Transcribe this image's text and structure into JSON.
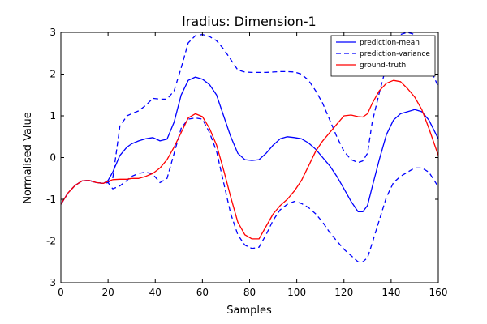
{
  "chart_data": {
    "type": "line",
    "title": "lradius: Dimension-1",
    "xlabel": "Samples",
    "ylabel": "Normalised Value",
    "xlim": [
      0,
      160
    ],
    "ylim": [
      -3,
      3
    ],
    "xticks": [
      0,
      20,
      40,
      60,
      80,
      100,
      120,
      140,
      160
    ],
    "yticks": [
      -3,
      -2,
      -1,
      0,
      1,
      2,
      3
    ],
    "grid": false,
    "legend_position": "top-right",
    "series": [
      {
        "name": "prediction-mean",
        "color": "#0000ff",
        "style": "solid",
        "x": [
          0,
          3,
          6,
          9,
          12,
          15,
          18,
          20,
          22,
          25,
          28,
          30,
          33,
          36,
          39,
          42,
          45,
          48,
          51,
          54,
          57,
          60,
          63,
          66,
          69,
          72,
          75,
          78,
          81,
          84,
          87,
          90,
          93,
          96,
          99,
          102,
          105,
          108,
          111,
          114,
          117,
          120,
          123,
          126,
          128,
          130,
          132,
          135,
          138,
          141,
          144,
          147,
          150,
          153,
          156,
          160
        ],
        "y": [
          -1.12,
          -0.85,
          -0.67,
          -0.56,
          -0.55,
          -0.6,
          -0.62,
          -0.55,
          -0.35,
          0.05,
          0.25,
          0.33,
          0.4,
          0.45,
          0.48,
          0.4,
          0.44,
          0.85,
          1.5,
          1.85,
          1.93,
          1.88,
          1.75,
          1.5,
          1.0,
          0.5,
          0.1,
          -0.05,
          -0.07,
          -0.05,
          0.1,
          0.3,
          0.45,
          0.5,
          0.48,
          0.45,
          0.35,
          0.2,
          0.0,
          -0.2,
          -0.45,
          -0.75,
          -1.05,
          -1.3,
          -1.3,
          -1.15,
          -0.7,
          -0.05,
          0.55,
          0.9,
          1.05,
          1.1,
          1.15,
          1.1,
          0.9,
          0.45
        ]
      },
      {
        "name": "prediction-variance",
        "color": "#0000ff",
        "style": "dashed",
        "x": [
          0,
          3,
          6,
          9,
          12,
          15,
          18,
          20,
          22,
          25,
          28,
          30,
          33,
          36,
          39,
          42,
          45,
          48,
          51,
          54,
          57,
          60,
          63,
          66,
          69,
          72,
          75,
          78,
          81,
          84,
          87,
          90,
          93,
          96,
          99,
          102,
          105,
          108,
          111,
          114,
          117,
          120,
          123,
          126,
          128,
          130,
          132,
          135,
          138,
          141,
          144,
          147,
          150,
          153,
          156,
          160
        ],
        "y": [
          -1.12,
          -0.85,
          -0.67,
          -0.56,
          -0.55,
          -0.6,
          -0.62,
          -0.6,
          -0.5,
          0.75,
          1.0,
          1.05,
          1.12,
          1.25,
          1.42,
          1.4,
          1.4,
          1.6,
          2.15,
          2.75,
          2.92,
          2.95,
          2.9,
          2.8,
          2.6,
          2.35,
          2.1,
          2.05,
          2.04,
          2.04,
          2.04,
          2.05,
          2.06,
          2.06,
          2.05,
          2.0,
          1.85,
          1.6,
          1.3,
          0.9,
          0.5,
          0.15,
          -0.05,
          -0.12,
          -0.08,
          0.1,
          0.85,
          1.55,
          2.2,
          2.7,
          2.95,
          3.0,
          2.95,
          2.6,
          2.2,
          1.7
        ]
      },
      {
        "name": "",
        "color": "#0000ff",
        "style": "dashed",
        "x": [
          0,
          3,
          6,
          9,
          12,
          15,
          18,
          20,
          22,
          25,
          28,
          30,
          33,
          36,
          39,
          42,
          45,
          48,
          51,
          54,
          57,
          60,
          63,
          66,
          69,
          72,
          75,
          78,
          81,
          84,
          87,
          90,
          93,
          96,
          99,
          102,
          105,
          108,
          111,
          114,
          117,
          120,
          123,
          126,
          128,
          130,
          132,
          135,
          138,
          141,
          144,
          147,
          150,
          153,
          156,
          160
        ],
        "y": [
          -1.12,
          -0.85,
          -0.67,
          -0.56,
          -0.55,
          -0.6,
          -0.62,
          -0.6,
          -0.75,
          -0.68,
          -0.55,
          -0.45,
          -0.38,
          -0.35,
          -0.4,
          -0.6,
          -0.5,
          0.1,
          0.7,
          0.92,
          0.95,
          0.92,
          0.6,
          0.15,
          -0.6,
          -1.35,
          -1.85,
          -2.1,
          -2.18,
          -2.15,
          -1.85,
          -1.5,
          -1.25,
          -1.12,
          -1.05,
          -1.1,
          -1.2,
          -1.35,
          -1.55,
          -1.8,
          -2.0,
          -2.2,
          -2.35,
          -2.5,
          -2.5,
          -2.4,
          -2.05,
          -1.5,
          -0.95,
          -0.6,
          -0.45,
          -0.35,
          -0.25,
          -0.25,
          -0.35,
          -0.7
        ]
      },
      {
        "name": "ground-truth",
        "color": "#ff0000",
        "style": "solid",
        "x": [
          0,
          3,
          6,
          9,
          12,
          15,
          18,
          20,
          22,
          25,
          28,
          30,
          33,
          36,
          39,
          42,
          45,
          48,
          51,
          54,
          57,
          60,
          63,
          66,
          69,
          72,
          75,
          78,
          81,
          84,
          87,
          90,
          93,
          96,
          99,
          102,
          105,
          108,
          111,
          114,
          117,
          120,
          123,
          126,
          128,
          130,
          132,
          135,
          138,
          141,
          144,
          147,
          150,
          153,
          156,
          160
        ],
        "y": [
          -1.12,
          -0.85,
          -0.67,
          -0.56,
          -0.55,
          -0.6,
          -0.62,
          -0.57,
          -0.53,
          -0.52,
          -0.52,
          -0.5,
          -0.5,
          -0.45,
          -0.38,
          -0.25,
          -0.05,
          0.25,
          0.6,
          0.95,
          1.05,
          0.98,
          0.7,
          0.3,
          -0.3,
          -0.95,
          -1.55,
          -1.85,
          -1.95,
          -1.95,
          -1.65,
          -1.35,
          -1.15,
          -1.0,
          -0.8,
          -0.55,
          -0.2,
          0.15,
          0.4,
          0.6,
          0.8,
          1.0,
          1.02,
          0.98,
          0.97,
          1.05,
          1.3,
          1.6,
          1.78,
          1.85,
          1.82,
          1.65,
          1.45,
          1.15,
          0.7,
          0.05
        ]
      }
    ]
  }
}
